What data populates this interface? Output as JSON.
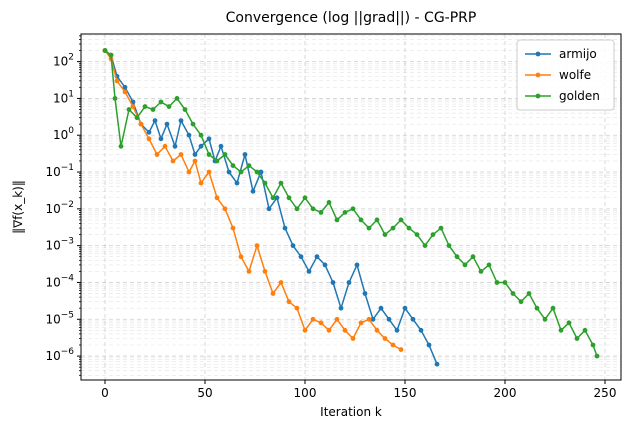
{
  "chart_data": {
    "type": "line",
    "title": "Convergence (log ||grad||) - CG-PRP",
    "xlabel": "Iteration k",
    "ylabel": "‖∇f(x_k)‖",
    "x_ticks": [
      "0",
      "50",
      "100",
      "150",
      "200",
      "250"
    ],
    "y_ticks": [
      "10^-6",
      "10^-5",
      "10^-4",
      "10^-3",
      "10^-2",
      "10^-1",
      "10^0",
      "10^1",
      "10^2"
    ],
    "xlim": [
      -12,
      258
    ],
    "ylim_log10": [
      -6.65,
      2.75
    ],
    "y_scale": "log",
    "grid": true,
    "legend_position": "top-right",
    "series": [
      {
        "name": "armijo",
        "color": "#1f77b4",
        "points": [
          [
            0,
            200
          ],
          [
            3,
            150
          ],
          [
            6,
            40
          ],
          [
            10,
            20
          ],
          [
            14,
            8
          ],
          [
            18,
            2
          ],
          [
            22,
            1.2
          ],
          [
            25,
            2.5
          ],
          [
            28,
            0.8
          ],
          [
            31,
            2
          ],
          [
            35,
            0.5
          ],
          [
            38,
            2.5
          ],
          [
            42,
            1
          ],
          [
            45,
            0.3
          ],
          [
            48,
            0.5
          ],
          [
            52,
            0.8
          ],
          [
            55,
            0.2
          ],
          [
            58,
            0.5
          ],
          [
            62,
            0.1
          ],
          [
            66,
            0.05
          ],
          [
            70,
            0.3
          ],
          [
            74,
            0.03
          ],
          [
            78,
            0.1
          ],
          [
            82,
            0.01
          ],
          [
            86,
            0.02
          ],
          [
            90,
            0.003
          ],
          [
            94,
            0.001
          ],
          [
            98,
            0.0005
          ],
          [
            102,
            0.0002
          ],
          [
            106,
            0.0005
          ],
          [
            110,
            0.0003
          ],
          [
            114,
            0.0001
          ],
          [
            118,
            2e-05
          ],
          [
            122,
            0.0001
          ],
          [
            126,
            0.0003
          ],
          [
            130,
            5e-05
          ],
          [
            134,
            1e-05
          ],
          [
            138,
            2e-05
          ],
          [
            142,
            1e-05
          ],
          [
            146,
            5e-06
          ],
          [
            150,
            2e-05
          ],
          [
            154,
            1e-05
          ],
          [
            158,
            5e-06
          ],
          [
            162,
            2e-06
          ],
          [
            166,
            6e-07
          ]
        ]
      },
      {
        "name": "wolfe",
        "color": "#ff7f0e",
        "points": [
          [
            0,
            200
          ],
          [
            3,
            120
          ],
          [
            6,
            30
          ],
          [
            10,
            15
          ],
          [
            14,
            6
          ],
          [
            18,
            2
          ],
          [
            22,
            0.8
          ],
          [
            26,
            0.3
          ],
          [
            30,
            0.5
          ],
          [
            34,
            0.2
          ],
          [
            38,
            0.3
          ],
          [
            42,
            0.1
          ],
          [
            45,
            0.2
          ],
          [
            48,
            0.05
          ],
          [
            52,
            0.1
          ],
          [
            56,
            0.02
          ],
          [
            60,
            0.01
          ],
          [
            64,
            0.003
          ],
          [
            68,
            0.0005
          ],
          [
            72,
            0.0002
          ],
          [
            76,
            0.001
          ],
          [
            80,
            0.0002
          ],
          [
            84,
            5e-05
          ],
          [
            88,
            0.0001
          ],
          [
            92,
            3e-05
          ],
          [
            96,
            2e-05
          ],
          [
            100,
            5e-06
          ],
          [
            104,
            1e-05
          ],
          [
            108,
            8e-06
          ],
          [
            112,
            5e-06
          ],
          [
            116,
            1e-05
          ],
          [
            120,
            5e-06
          ],
          [
            124,
            3e-06
          ],
          [
            128,
            8e-06
          ],
          [
            132,
            1e-05
          ],
          [
            136,
            5e-06
          ],
          [
            140,
            3e-06
          ],
          [
            144,
            2e-06
          ],
          [
            148,
            1.5e-06
          ]
        ]
      },
      {
        "name": "golden",
        "color": "#2ca02c",
        "points": [
          [
            0,
            200
          ],
          [
            3,
            150
          ],
          [
            5,
            10
          ],
          [
            8,
            0.5
          ],
          [
            12,
            5
          ],
          [
            16,
            3
          ],
          [
            20,
            6
          ],
          [
            24,
            5
          ],
          [
            28,
            8
          ],
          [
            32,
            6
          ],
          [
            36,
            10
          ],
          [
            40,
            5
          ],
          [
            44,
            2
          ],
          [
            48,
            1
          ],
          [
            52,
            0.3
          ],
          [
            56,
            0.2
          ],
          [
            60,
            0.3
          ],
          [
            64,
            0.15
          ],
          [
            68,
            0.1
          ],
          [
            72,
            0.15
          ],
          [
            76,
            0.1
          ],
          [
            80,
            0.05
          ],
          [
            84,
            0.02
          ],
          [
            88,
            0.05
          ],
          [
            92,
            0.02
          ],
          [
            96,
            0.01
          ],
          [
            100,
            0.02
          ],
          [
            104,
            0.01
          ],
          [
            108,
            0.008
          ],
          [
            112,
            0.015
          ],
          [
            116,
            0.005
          ],
          [
            120,
            0.008
          ],
          [
            124,
            0.01
          ],
          [
            128,
            0.005
          ],
          [
            132,
            0.003
          ],
          [
            136,
            0.005
          ],
          [
            140,
            0.002
          ],
          [
            144,
            0.003
          ],
          [
            148,
            0.005
          ],
          [
            152,
            0.003
          ],
          [
            156,
            0.002
          ],
          [
            160,
            0.001
          ],
          [
            164,
            0.002
          ],
          [
            168,
            0.003
          ],
          [
            172,
            0.001
          ],
          [
            176,
            0.0005
          ],
          [
            180,
            0.0003
          ],
          [
            184,
            0.0005
          ],
          [
            188,
            0.0002
          ],
          [
            192,
            0.0003
          ],
          [
            196,
            0.0001
          ],
          [
            200,
            0.0001
          ],
          [
            204,
            5e-05
          ],
          [
            208,
            3e-05
          ],
          [
            212,
            5e-05
          ],
          [
            216,
            2e-05
          ],
          [
            220,
            1e-05
          ],
          [
            224,
            2e-05
          ],
          [
            228,
            5e-06
          ],
          [
            232,
            8e-06
          ],
          [
            236,
            3e-06
          ],
          [
            240,
            5e-06
          ],
          [
            244,
            2e-06
          ],
          [
            246,
            1e-06
          ]
        ]
      }
    ]
  }
}
